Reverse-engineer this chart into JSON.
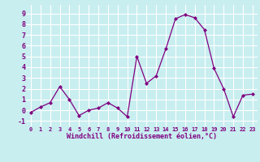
{
  "x": [
    0,
    1,
    2,
    3,
    4,
    5,
    6,
    7,
    8,
    9,
    10,
    11,
    12,
    13,
    14,
    15,
    16,
    17,
    18,
    19,
    20,
    21,
    22,
    23
  ],
  "y": [
    -0.2,
    0.3,
    0.7,
    2.2,
    1.0,
    -0.5,
    0.0,
    0.2,
    0.7,
    0.2,
    -0.6,
    5.0,
    2.5,
    3.2,
    5.7,
    8.5,
    8.9,
    8.6,
    7.5,
    3.9,
    2.0,
    -0.6,
    1.4,
    1.5
  ],
  "line_color": "#800080",
  "marker": "D",
  "marker_size": 2,
  "bg_color": "#c8eef0",
  "grid_color": "#ffffff",
  "xlabel": "Windchill (Refroidissement éolien,°C)",
  "ylabel_ticks": [
    -1,
    0,
    1,
    2,
    3,
    4,
    5,
    6,
    7,
    8,
    9
  ],
  "xlim": [
    -0.5,
    23.5
  ],
  "ylim": [
    -1.5,
    9.8
  ],
  "title": "",
  "xtick_fontsize": 5.0,
  "ytick_fontsize": 6.0,
  "xlabel_fontsize": 6.0
}
